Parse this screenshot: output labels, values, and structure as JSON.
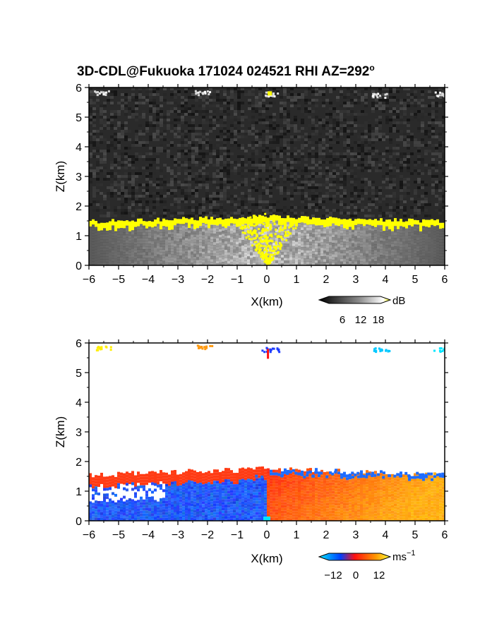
{
  "title": "3D-CDL@Fukuoka 171024 024521 RHI AZ=292",
  "title_degree": "o",
  "chart_data": [
    {
      "type": "heatmap",
      "name": "reflectivity",
      "xlabel": "X(km)",
      "ylabel": "Z(km)",
      "xlim": [
        -6,
        6
      ],
      "ylim": [
        0,
        6
      ],
      "xticks": [
        "−6",
        "−5",
        "−4",
        "−3",
        "−2",
        "−1",
        "0",
        "1",
        "2",
        "3",
        "4",
        "5",
        "6"
      ],
      "yticks": [
        "0",
        "1",
        "2",
        "3",
        "4",
        "5",
        "6"
      ],
      "colorbar": {
        "unit": "dB",
        "ticks": [
          "6",
          "12",
          "18"
        ],
        "values": [
          6,
          12,
          18
        ]
      },
      "layer_top_km": 1.65,
      "colors": {
        "high": "#ffff00",
        "background": "#2a2a2a"
      }
    },
    {
      "type": "heatmap",
      "name": "doppler-velocity",
      "xlabel": "X(km)",
      "ylabel": "Z(km)",
      "xlim": [
        -6,
        6
      ],
      "ylim": [
        0,
        6
      ],
      "xticks": [
        "−6",
        "−5",
        "−4",
        "−3",
        "−2",
        "−1",
        "0",
        "1",
        "2",
        "3",
        "4",
        "5",
        "6"
      ],
      "yticks": [
        "0",
        "1",
        "2",
        "3",
        "4",
        "5",
        "6"
      ],
      "colorbar": {
        "unit": "ms",
        "unit_sup": "−1",
        "ticks": [
          "−12",
          "0",
          "12"
        ],
        "values": [
          -12,
          0,
          12
        ]
      },
      "layer_top_km": 1.75,
      "colors": {
        "negative": "#1e6cff",
        "positive": "#ff3b14",
        "far_positive": "#ff9a12"
      }
    }
  ]
}
